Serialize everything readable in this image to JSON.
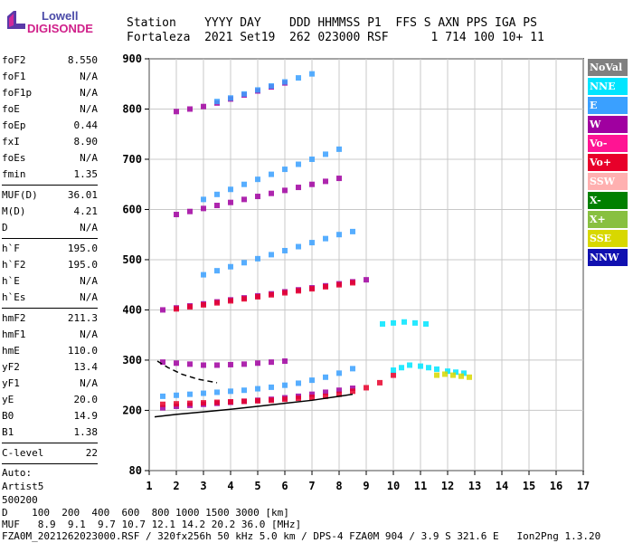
{
  "logo": {
    "line1": "Lowell",
    "line2": "DIGISONDE"
  },
  "header": {
    "line1": "Station    YYYY DAY    DDD HHMMSS P1  FFS S AXN PPS IGA PS",
    "line2": "Fortaleza  2021 Set19  262 023000 RSF      1 714 100 10+ 11"
  },
  "params": [
    {
      "name": "foF2",
      "value": "8.550"
    },
    {
      "name": "foF1",
      "value": "N/A"
    },
    {
      "name": "foF1p",
      "value": "N/A"
    },
    {
      "name": "foE",
      "value": "N/A"
    },
    {
      "name": "foEp",
      "value": "0.44"
    },
    {
      "name": "fxI",
      "value": "8.90"
    },
    {
      "name": "foEs",
      "value": "N/A"
    },
    {
      "name": "fmin",
      "value": "1.35"
    },
    {
      "divider": true
    },
    {
      "name": "MUF(D)",
      "value": "36.01"
    },
    {
      "name": "M(D)",
      "value": "4.21"
    },
    {
      "name": "D",
      "value": "N/A"
    },
    {
      "divider": true
    },
    {
      "name": "h`F",
      "value": "195.0"
    },
    {
      "name": "h`F2",
      "value": "195.0"
    },
    {
      "name": "h`E",
      "value": "N/A"
    },
    {
      "name": "h`Es",
      "value": "N/A"
    },
    {
      "divider": true
    },
    {
      "name": "hmF2",
      "value": "211.3"
    },
    {
      "name": "hmF1",
      "value": "N/A"
    },
    {
      "name": "hmE",
      "value": "110.0"
    },
    {
      "name": "yF2",
      "value": "13.4"
    },
    {
      "name": "yF1",
      "value": "N/A"
    },
    {
      "name": "yE",
      "value": "20.0"
    },
    {
      "name": "B0",
      "value": "14.9"
    },
    {
      "name": "B1",
      "value": "1.38"
    },
    {
      "divider": true
    },
    {
      "name": "C-level",
      "value": "22"
    },
    {
      "divider": true
    },
    {
      "note": "Auto:"
    },
    {
      "note": "Artist5"
    },
    {
      "note": "500200"
    }
  ],
  "legend": [
    {
      "label": "NoVal",
      "bg": "#808080",
      "fg": "#ffffff"
    },
    {
      "label": "NNE",
      "bg": "#00e5ff",
      "fg": "#ffffff"
    },
    {
      "label": "E",
      "bg": "#3aa0ff",
      "fg": "#ffffff"
    },
    {
      "label": "W",
      "bg": "#a000a0",
      "fg": "#ffffff"
    },
    {
      "label": "Vo-",
      "bg": "#ff1493",
      "fg": "#ffffff"
    },
    {
      "label": "Vo+",
      "bg": "#e8002a",
      "fg": "#ffffff"
    },
    {
      "label": "SSW",
      "bg": "#ffb0b0",
      "fg": "#ffffff"
    },
    {
      "label": "X-",
      "bg": "#008000",
      "fg": "#ffffff"
    },
    {
      "label": "X+",
      "bg": "#88c040",
      "fg": "#ffffff"
    },
    {
      "label": "SSE",
      "bg": "#d8d800",
      "fg": "#ffffff"
    },
    {
      "label": "NNW",
      "bg": "#1010b0",
      "fg": "#ffffff"
    }
  ],
  "footer": {
    "line1": "D    100  200  400  600  800 1000 1500 3000 [km]",
    "line2": "MUF   8.9  9.1  9.7 10.7 12.1 14.2 20.2 36.0 [MHz]",
    "line3": "FZA0M_2021262023000.RSF / 320fx256h 50 kHz 5.0 km / DPS-4 FZA0M 904 / 3.9 S 321.6 E   Ion2Png 1.3.20"
  },
  "chart_data": {
    "type": "scatter",
    "xlim": [
      1,
      17
    ],
    "ylim": [
      80,
      900
    ],
    "xticks": [
      1,
      2,
      3,
      4,
      5,
      6,
      7,
      8,
      9,
      10,
      11,
      12,
      13,
      14,
      15,
      16,
      17
    ],
    "yticks": [
      80,
      200,
      300,
      400,
      500,
      600,
      700,
      800,
      900
    ],
    "grid": true,
    "legend_position": "right",
    "traces": [
      {
        "color": "#a000a0",
        "x": [
          1.5,
          2,
          2.5,
          3,
          3.5,
          4,
          4.5,
          5,
          5.5,
          6,
          6.5,
          7,
          7.5,
          8,
          8.5
        ],
        "y": [
          205,
          208,
          210,
          212,
          214,
          216,
          218,
          220,
          222,
          225,
          228,
          232,
          236,
          240,
          244
        ]
      },
      {
        "color": "#e8002a",
        "x": [
          1.5,
          2,
          2.5,
          3,
          3.5,
          4,
          4.5,
          5,
          5.5,
          6,
          6.5,
          7,
          7.5,
          8,
          8.5,
          9,
          9.5,
          10
        ],
        "y": [
          212,
          213,
          214,
          215,
          216,
          217,
          218,
          219,
          220,
          222,
          224,
          226,
          228,
          232,
          238,
          245,
          255,
          270
        ]
      },
      {
        "color": "#3aa0ff",
        "x": [
          1.5,
          2,
          2.5,
          3,
          3.5,
          4,
          4.5,
          5,
          5.5,
          6,
          6.5,
          7,
          7.5,
          8,
          8.5
        ],
        "y": [
          228,
          230,
          232,
          234,
          236,
          238,
          240,
          243,
          246,
          250,
          254,
          260,
          266,
          274,
          283
        ]
      },
      {
        "color": "#00e5ff",
        "x": [
          10,
          10.3,
          10.6,
          11,
          11.3,
          11.6,
          12,
          12.3,
          12.6
        ],
        "y": [
          280,
          285,
          290,
          288,
          285,
          282,
          278,
          276,
          274
        ]
      },
      {
        "color": "#d8d800",
        "x": [
          11.6,
          11.9,
          12.2,
          12.5,
          12.8
        ],
        "y": [
          270,
          272,
          270,
          268,
          266
        ]
      },
      {
        "color": "#a000a0",
        "x": [
          1.5,
          2,
          2.5,
          3,
          3.5,
          4,
          4.5,
          5,
          5.5,
          6
        ],
        "y": [
          296,
          294,
          292,
          290,
          290,
          291,
          292,
          294,
          296,
          298
        ]
      },
      {
        "color": "#a000a0",
        "x": [
          1.5,
          2,
          2.5,
          3,
          3.5,
          4,
          4.5,
          5,
          5.5,
          6,
          6.5,
          7,
          7.5,
          8,
          8.5,
          9
        ],
        "y": [
          400,
          404,
          408,
          412,
          416,
          420,
          424,
          428,
          432,
          436,
          440,
          444,
          448,
          452,
          456,
          460
        ]
      },
      {
        "color": "#e8002a",
        "x": [
          2,
          2.5,
          3,
          3.5,
          4,
          4.5,
          5,
          5.5,
          6,
          6.5,
          7,
          7.5,
          8,
          8.5
        ],
        "y": [
          402,
          406,
          410,
          414,
          418,
          422,
          426,
          430,
          434,
          438,
          442,
          446,
          450,
          454
        ]
      },
      {
        "color": "#3aa0ff",
        "x": [
          3,
          3.5,
          4,
          4.5,
          5,
          5.5,
          6,
          6.5,
          7,
          7.5,
          8,
          8.5
        ],
        "y": [
          470,
          478,
          486,
          494,
          502,
          510,
          518,
          526,
          534,
          542,
          550,
          556
        ]
      },
      {
        "color": "#00e5ff",
        "x": [
          9.6,
          10,
          10.4,
          10.8,
          11.2
        ],
        "y": [
          372,
          374,
          376,
          374,
          372
        ]
      },
      {
        "color": "#a000a0",
        "x": [
          2,
          2.5,
          3,
          3.5,
          4,
          4.5,
          5,
          5.5,
          6,
          6.5,
          7,
          7.5,
          8
        ],
        "y": [
          590,
          596,
          602,
          608,
          614,
          620,
          626,
          632,
          638,
          644,
          650,
          656,
          662
        ]
      },
      {
        "color": "#3aa0ff",
        "x": [
          3,
          3.5,
          4,
          4.5,
          5,
          5.5,
          6,
          6.5,
          7,
          7.5,
          8
        ],
        "y": [
          620,
          630,
          640,
          650,
          660,
          670,
          680,
          690,
          700,
          710,
          720
        ]
      },
      {
        "color": "#a000a0",
        "x": [
          2,
          2.5,
          3,
          3.5,
          4,
          4.5,
          5,
          5.5,
          6
        ],
        "y": [
          795,
          800,
          805,
          812,
          820,
          828,
          836,
          844,
          852
        ]
      },
      {
        "color": "#3aa0ff",
        "x": [
          3.5,
          4,
          4.5,
          5,
          5.5,
          6,
          6.5,
          7
        ],
        "y": [
          815,
          822,
          830,
          838,
          846,
          854,
          862,
          870
        ]
      }
    ],
    "curves": [
      {
        "style": "solid",
        "x": [
          1.2,
          2,
          3,
          4,
          5,
          6,
          7,
          8,
          8.5
        ],
        "y": [
          187,
          192,
          197,
          202,
          208,
          214,
          220,
          228,
          232
        ]
      },
      {
        "style": "dashed",
        "x": [
          1.3,
          1.7,
          2.2,
          2.8,
          3.5
        ],
        "y": [
          298,
          285,
          272,
          262,
          255
        ]
      }
    ]
  }
}
